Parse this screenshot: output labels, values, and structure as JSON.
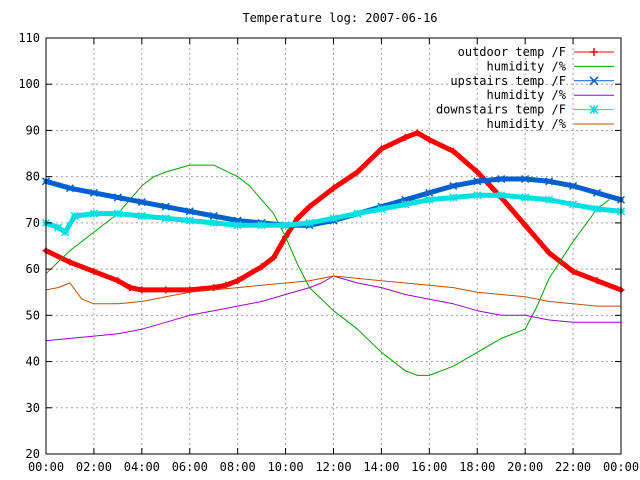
{
  "chart_data": {
    "type": "line",
    "title": "Temperature log: 2007-06-16",
    "xlabel": "",
    "ylabel": "",
    "x_range": [
      0,
      24
    ],
    "ylim": [
      20,
      110
    ],
    "x_tick_labels": [
      "00:00",
      "02:00",
      "04:00",
      "06:00",
      "08:00",
      "10:00",
      "12:00",
      "14:00",
      "16:00",
      "18:00",
      "20:00",
      "22:00",
      "00:00"
    ],
    "x_tick_values": [
      0,
      2,
      4,
      6,
      8,
      10,
      12,
      14,
      16,
      18,
      20,
      22,
      24
    ],
    "y_ticks": [
      20,
      30,
      40,
      50,
      60,
      70,
      80,
      90,
      100,
      110
    ],
    "grid": true,
    "legend_position": "top-right",
    "series": [
      {
        "name": "outdoor temp /F",
        "color": "#ff0000",
        "marker": "plus",
        "x": [
          0,
          1,
          2,
          3,
          3.5,
          4,
          5,
          6,
          7,
          7.5,
          8,
          9,
          9.5,
          10,
          10.5,
          11,
          12,
          13,
          14,
          15,
          15.5,
          16,
          17,
          18,
          19,
          20,
          21,
          22,
          23,
          24
        ],
        "values": [
          64,
          61.5,
          59.5,
          57.5,
          56,
          55.5,
          55.5,
          55.5,
          56,
          56.5,
          57.5,
          60.5,
          62.5,
          67,
          71,
          73.5,
          77.5,
          81,
          86,
          88.5,
          89.5,
          88,
          85.5,
          81,
          75.5,
          69.5,
          63.5,
          59.5,
          57.5,
          55.5
        ]
      },
      {
        "name": "humidity /%",
        "color": "#00a000",
        "marker": "none",
        "x": [
          0,
          1,
          2,
          3,
          4,
          4.5,
          5,
          6,
          7,
          8,
          8.5,
          9,
          9.5,
          10,
          10.5,
          11,
          12,
          13,
          14,
          15,
          15.5,
          16,
          17,
          18,
          19,
          20,
          20.5,
          21,
          22,
          23,
          23.5
        ],
        "values": [
          59,
          64,
          68,
          72,
          78,
          80,
          81,
          82.5,
          82.5,
          80,
          78,
          75,
          72,
          67,
          61,
          56,
          51,
          47,
          42,
          38,
          37,
          37,
          39,
          42,
          45,
          47,
          52,
          58,
          66,
          73,
          75
        ]
      },
      {
        "name": "upstairs temp /F",
        "color": "#0060d0",
        "marker": "cross",
        "x": [
          0,
          1,
          2,
          3,
          4,
          5,
          6,
          7,
          8,
          9,
          10,
          11,
          12,
          13,
          14,
          15,
          16,
          17,
          18,
          19,
          20,
          21,
          22,
          23,
          24
        ],
        "values": [
          79,
          77.5,
          76.5,
          75.5,
          74.5,
          73.5,
          72.5,
          71.5,
          70.5,
          70,
          69.5,
          69.5,
          70.5,
          72,
          73.5,
          75,
          76.5,
          78,
          79,
          79.5,
          79.5,
          79,
          78,
          76.5,
          75
        ]
      },
      {
        "name": "humidity /%",
        "color": "#a000d0",
        "marker": "none",
        "x": [
          0,
          1,
          2,
          3,
          4,
          5,
          6,
          7,
          8,
          9,
          10,
          11,
          11.5,
          12,
          13,
          14,
          15,
          16,
          17,
          18,
          19,
          20,
          21,
          22,
          23,
          24
        ],
        "values": [
          44.5,
          45,
          45.5,
          46,
          47,
          48.5,
          50,
          51,
          52,
          53,
          54.5,
          56,
          57,
          58.5,
          57,
          56,
          54.5,
          53.5,
          52.5,
          51,
          50,
          50,
          49,
          48.5,
          48.5,
          48.5
        ]
      },
      {
        "name": "downstairs temp /F",
        "color": "#00e0e0",
        "marker": "star",
        "x": [
          0,
          0.5,
          0.8,
          1.2,
          2,
          3,
          4,
          5,
          6,
          7,
          8,
          9,
          10,
          11,
          12,
          13,
          14,
          15,
          16,
          17,
          18,
          19,
          20,
          21,
          22,
          23,
          24
        ],
        "values": [
          70,
          69,
          68,
          71.5,
          72,
          72,
          71.5,
          71,
          70.5,
          70,
          69.5,
          69.5,
          69.5,
          70,
          71,
          72,
          73,
          74,
          75,
          75.5,
          76,
          76,
          75.5,
          75,
          74,
          73,
          72.5
        ]
      },
      {
        "name": "humidity /%",
        "color": "#c05000",
        "marker": "none",
        "x": [
          0,
          0.5,
          1,
          1.5,
          2,
          3,
          4,
          5,
          6,
          7,
          8,
          9,
          10,
          11,
          12,
          13,
          14,
          15,
          16,
          17,
          18,
          19,
          20,
          21,
          22,
          23,
          24
        ],
        "values": [
          55.5,
          56,
          57,
          53.5,
          52.5,
          52.5,
          53,
          54,
          55,
          55.5,
          56,
          56.5,
          57,
          57.5,
          58.5,
          58,
          57.5,
          57,
          56.5,
          56,
          55,
          54.5,
          54,
          53,
          52.5,
          52,
          52
        ]
      }
    ]
  }
}
